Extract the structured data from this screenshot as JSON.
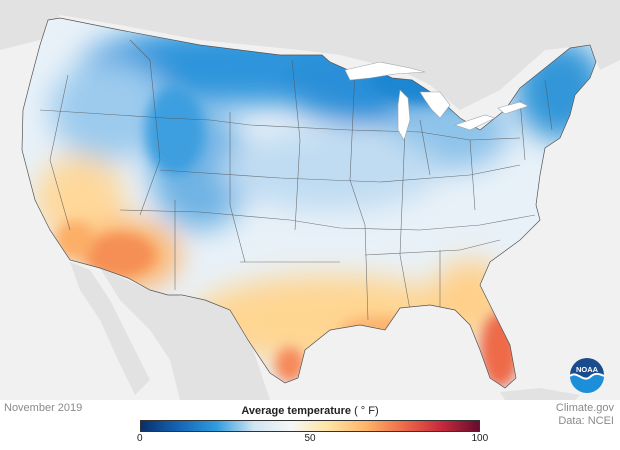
{
  "map": {
    "date_label": "November 2019",
    "legend": {
      "title": "Average temperature",
      "unit": "( ° F)",
      "min": 0,
      "mid": 50,
      "max": 100,
      "tick_min": "0",
      "tick_mid": "50",
      "tick_max": "100",
      "colors": [
        "#08306b",
        "#1565b5",
        "#2e9be0",
        "#cfe4f2",
        "#f6f6f6",
        "#ffe3a3",
        "#fdb468",
        "#ee6a4a",
        "#c62a3b",
        "#670d2e"
      ]
    },
    "credit_line1": "Climate.gov",
    "credit_line2": "Data: NCEI",
    "logo_text": "NOAA"
  }
}
